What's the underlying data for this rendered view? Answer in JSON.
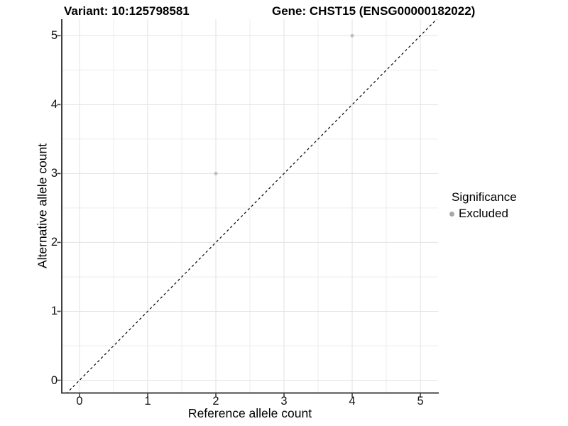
{
  "chart_data": {
    "type": "scatter",
    "titles": {
      "left": "Variant: 10:125798581",
      "right": "Gene: CHST15 (ENSG00000182022)"
    },
    "xlabel": "Reference allele count",
    "ylabel": "Alternative allele count",
    "x_ticks": [
      0,
      1,
      2,
      3,
      4,
      5
    ],
    "y_ticks": [
      0,
      1,
      2,
      3,
      4,
      5
    ],
    "xlim": [
      -0.25,
      5.26
    ],
    "ylim": [
      -0.18,
      5.24
    ],
    "grid": {
      "major": true,
      "minor": true
    },
    "series": [
      {
        "name": "Excluded",
        "type": "scatter",
        "color": "#bfbfbf",
        "marker_radius": 2.5,
        "points": [
          {
            "x": 2,
            "y": 3
          },
          {
            "x": 4,
            "y": 5
          }
        ]
      }
    ],
    "reference_line": {
      "type": "identity",
      "style": "dashed",
      "color": "#000000",
      "from": [
        -0.3,
        -0.3
      ],
      "to": [
        5.5,
        5.5
      ]
    },
    "legend": {
      "title": "Significance",
      "position": "right",
      "items": [
        {
          "label": "Excluded",
          "marker_color": "#a8a8a8"
        }
      ]
    },
    "colors": {
      "axis_line": "#3f3f3f",
      "grid_major": "#e2e2e2",
      "grid_minor": "#eeeeee",
      "background": "#ffffff",
      "text": "#000000"
    }
  }
}
